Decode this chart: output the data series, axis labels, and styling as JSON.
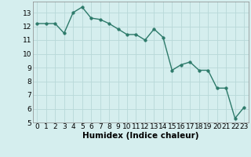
{
  "x": [
    0,
    1,
    2,
    3,
    4,
    5,
    6,
    7,
    8,
    9,
    10,
    11,
    12,
    13,
    14,
    15,
    16,
    17,
    18,
    19,
    20,
    21,
    22,
    23
  ],
  "y": [
    12.2,
    12.2,
    12.2,
    11.5,
    13.0,
    13.4,
    12.6,
    12.5,
    12.2,
    11.8,
    11.4,
    11.4,
    11.0,
    11.8,
    11.2,
    8.8,
    9.2,
    9.4,
    8.8,
    8.8,
    7.5,
    7.5,
    5.3,
    6.1
  ],
  "xlabel": "Humidex (Indice chaleur)",
  "ylim": [
    5,
    13.8
  ],
  "xlim": [
    -0.5,
    23.5
  ],
  "yticks": [
    5,
    6,
    7,
    8,
    9,
    10,
    11,
    12,
    13
  ],
  "xticks": [
    0,
    1,
    2,
    3,
    4,
    5,
    6,
    7,
    8,
    9,
    10,
    11,
    12,
    13,
    14,
    15,
    16,
    17,
    18,
    19,
    20,
    21,
    22,
    23
  ],
  "line_color": "#2d7a6a",
  "marker_color": "#2d7a6a",
  "bg_color": "#d5eeee",
  "grid_color": "#b8d8d8",
  "xlabel_fontsize": 7.5,
  "tick_fontsize": 6.5,
  "line_width": 1.0,
  "marker_size": 2.5
}
